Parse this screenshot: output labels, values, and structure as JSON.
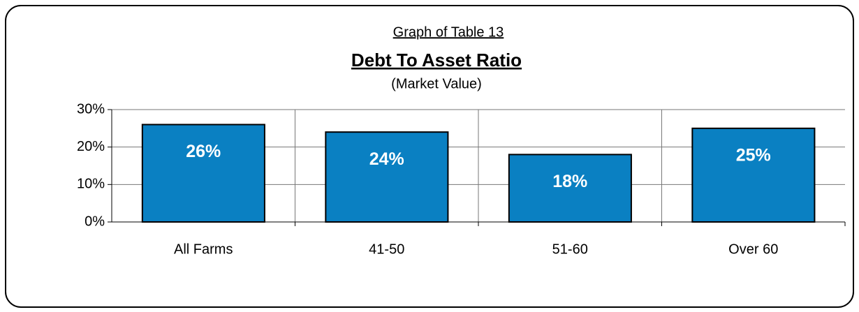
{
  "chart_data": {
    "type": "bar",
    "heading": "Graph of Table 13",
    "title": "Debt To Asset Ratio",
    "subtitle": "(Market Value)",
    "categories": [
      "All Farms",
      "41-50",
      "51-60",
      "Over 60"
    ],
    "values": [
      26,
      24,
      18,
      25
    ],
    "value_labels": [
      "26%",
      "24%",
      "18%",
      "25%"
    ],
    "color": "#0a80c2",
    "ylim": [
      0,
      30
    ],
    "yticks": [
      {
        "value": 0,
        "label": "0%"
      },
      {
        "value": 10,
        "label": "10%"
      },
      {
        "value": 20,
        "label": "20%"
      },
      {
        "value": 30,
        "label": "30%"
      }
    ],
    "grid": true
  }
}
